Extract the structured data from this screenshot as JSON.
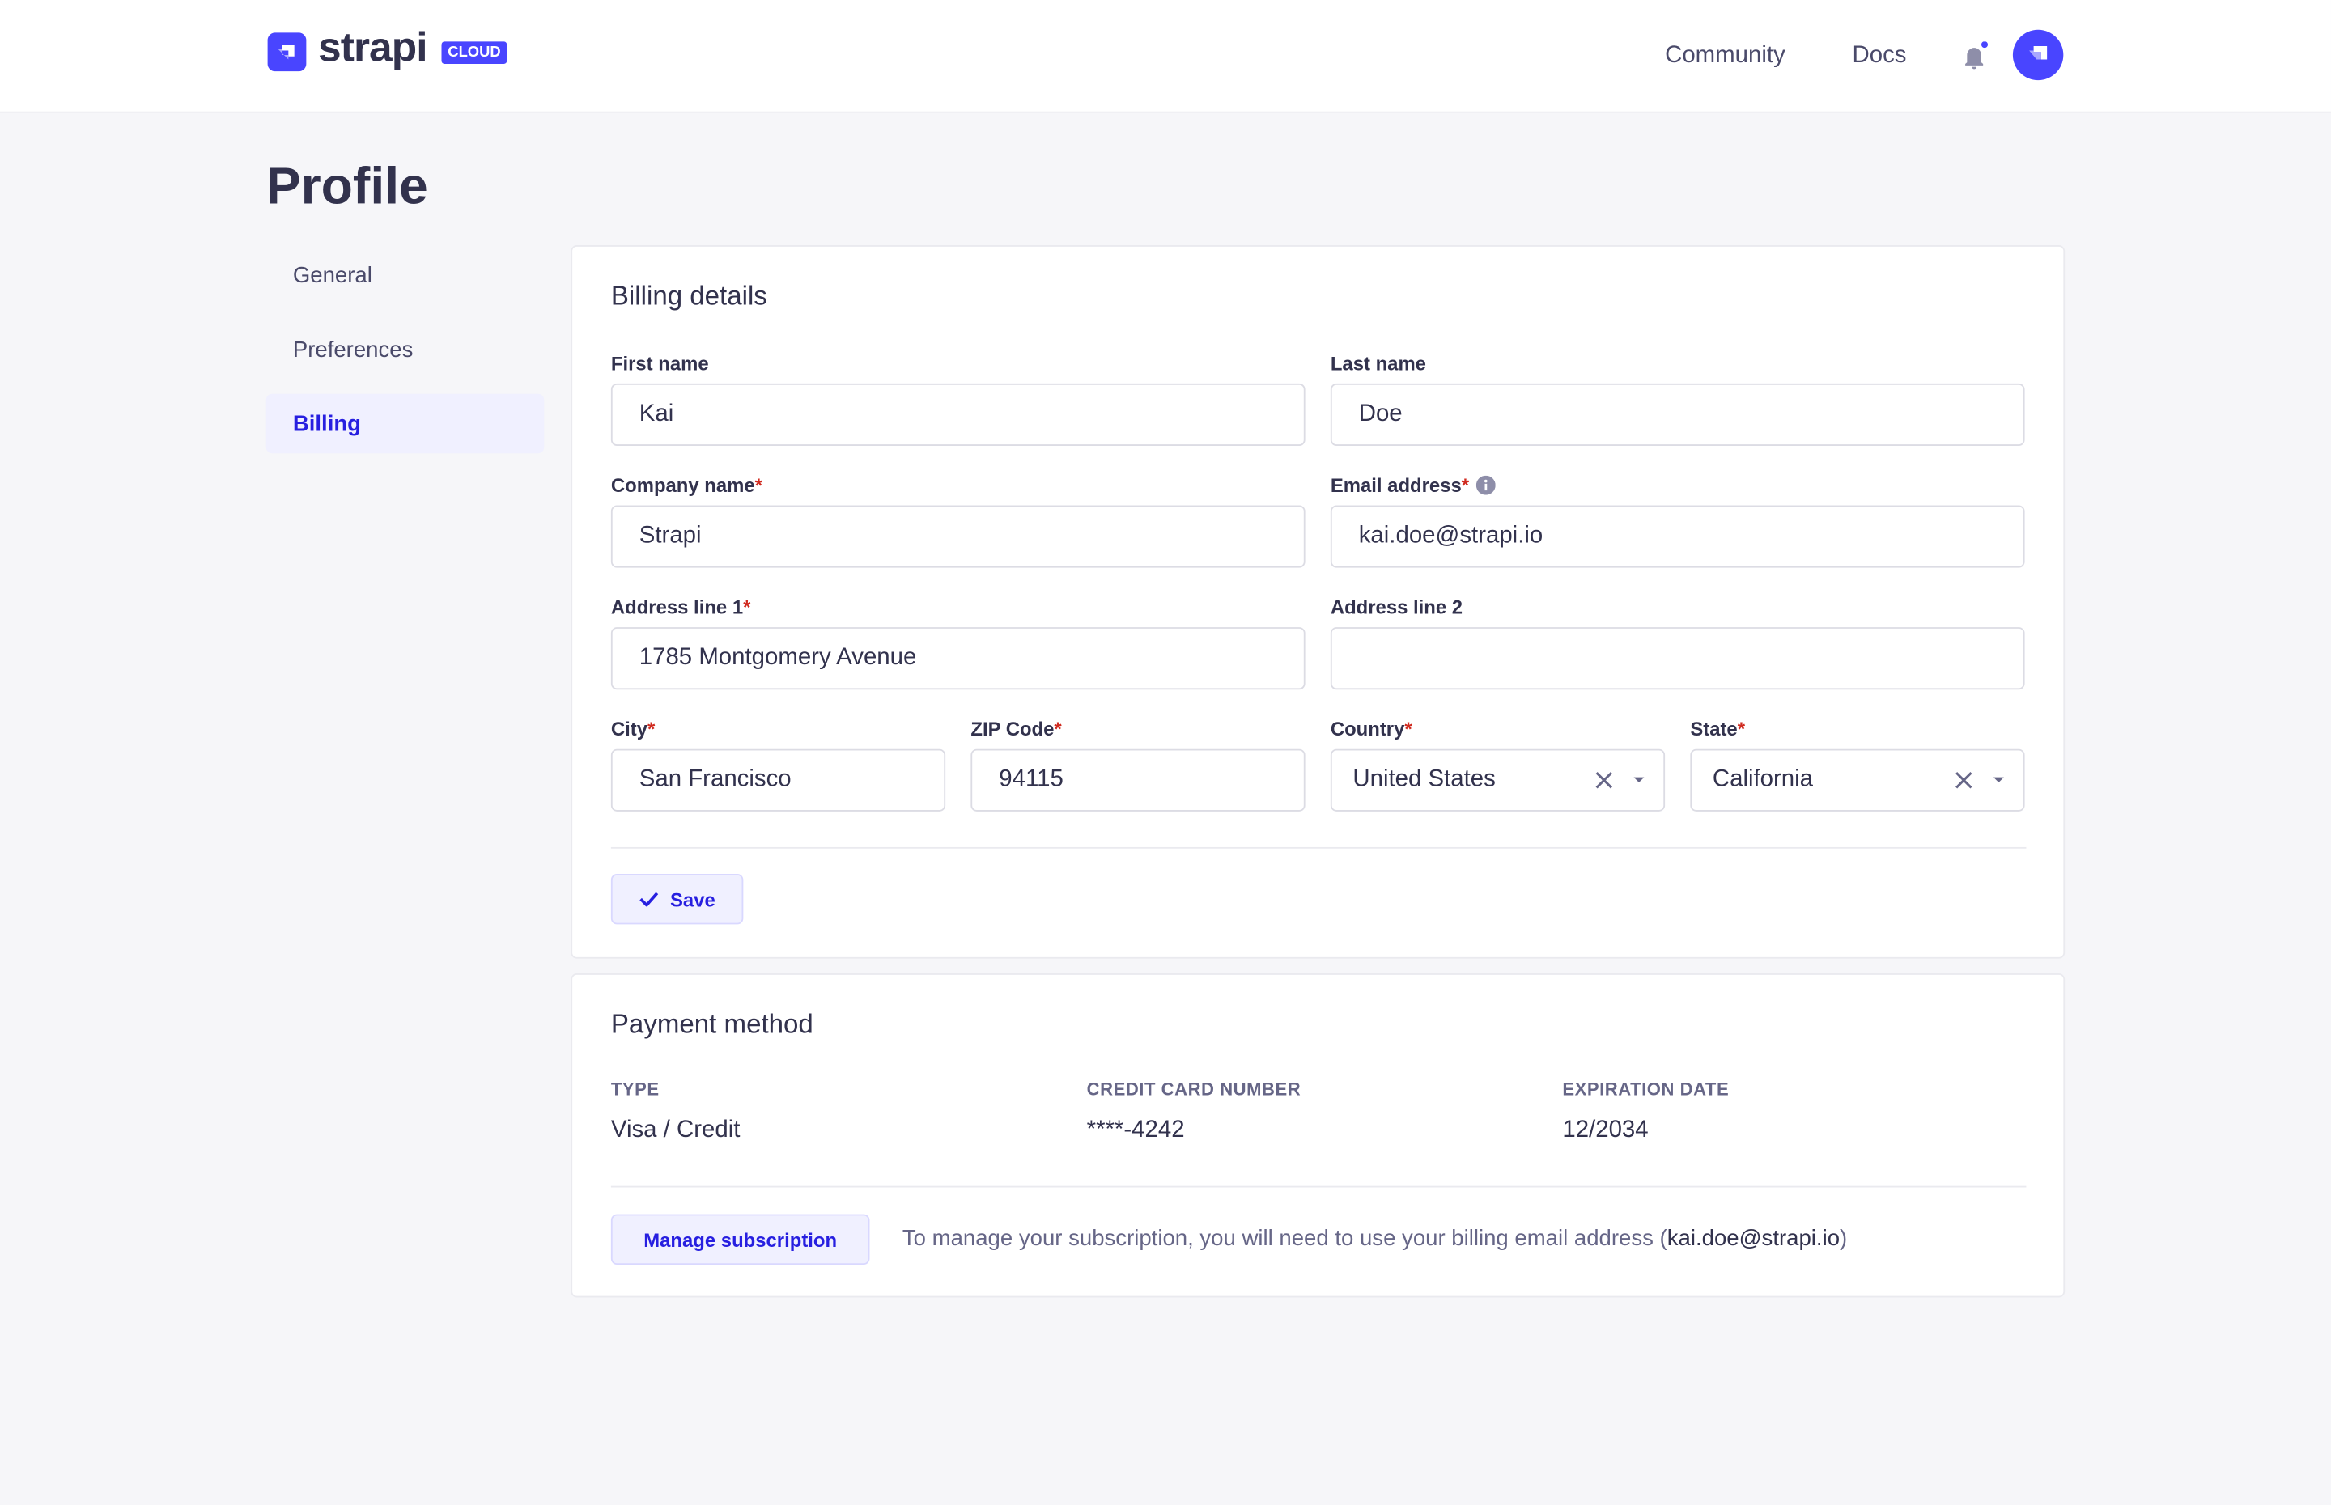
{
  "header": {
    "brand": "strapi",
    "badge": "CLOUD",
    "links": [
      "Community",
      "Docs"
    ],
    "notification_dot": true,
    "accent": "#4945ff"
  },
  "page_title": "Profile",
  "sidebar": {
    "items": [
      {
        "label": "General"
      },
      {
        "label": "Preferences"
      },
      {
        "label": "Billing",
        "active": true
      }
    ]
  },
  "billing": {
    "title": "Billing details",
    "fields": {
      "first_name": {
        "label": "First name",
        "value": "Kai"
      },
      "last_name": {
        "label": "Last name",
        "value": "Doe"
      },
      "company": {
        "label": "Company name",
        "value": "Strapi",
        "required": true
      },
      "email": {
        "label": "Email address",
        "value": "kai.doe@strapi.io",
        "required": true
      },
      "address1": {
        "label": "Address line 1",
        "value": "1785 Montgomery Avenue",
        "required": true
      },
      "address2": {
        "label": "Address line 2",
        "value": ""
      },
      "city": {
        "label": "City",
        "value": "San Francisco",
        "required": true
      },
      "zip": {
        "label": "ZIP Code",
        "value": "94115",
        "required": true
      },
      "country": {
        "label": "Country",
        "value": "United States",
        "required": true
      },
      "state": {
        "label": "State",
        "value": "California",
        "required": true
      }
    },
    "required_mark": "*",
    "save_label": "Save"
  },
  "payment": {
    "title": "Payment method",
    "columns": [
      {
        "header": "TYPE",
        "value": "Visa / Credit"
      },
      {
        "header": "CREDIT CARD NUMBER",
        "value": "****-4242"
      },
      {
        "header": "EXPIRATION DATE",
        "value": "12/2034"
      }
    ],
    "manage_label": "Manage subscription",
    "note_prefix": "To manage your subscription, you will need to use your billing email address (",
    "note_email": "kai.doe@strapi.io",
    "note_suffix": ")"
  }
}
